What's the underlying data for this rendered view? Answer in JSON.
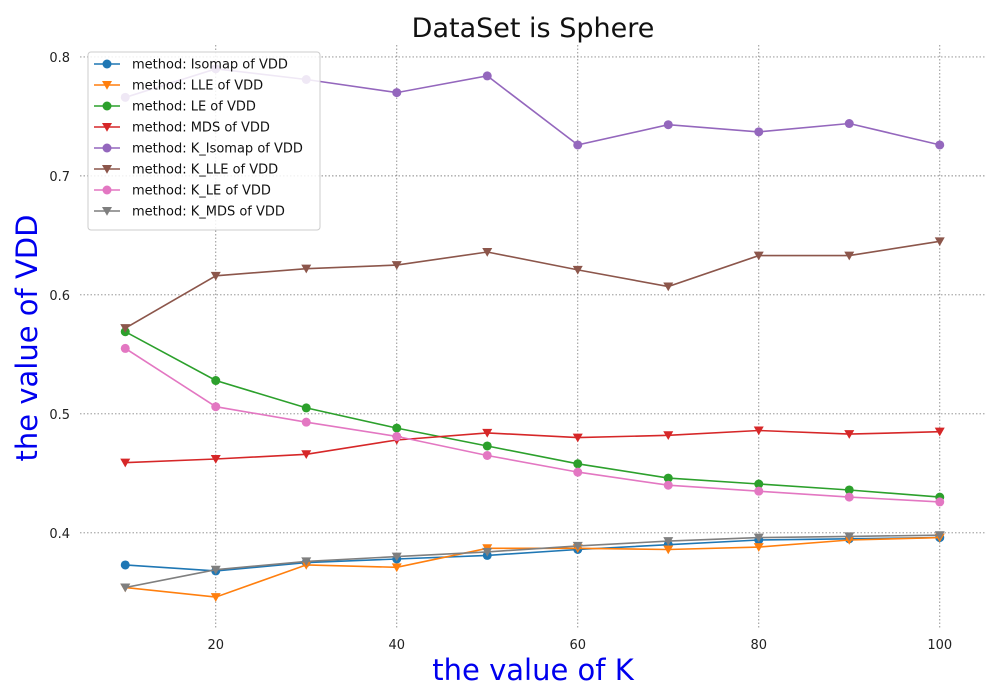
{
  "chart_data": {
    "type": "line",
    "title": "DataSet is Sphere",
    "xlabel": "the value of K",
    "ylabel": "the value of VDD",
    "label_color": "#0000ee",
    "x": [
      10,
      20,
      30,
      40,
      50,
      60,
      70,
      80,
      90,
      100
    ],
    "xlim": [
      5,
      105
    ],
    "ylim": [
      0.32,
      0.81
    ],
    "xticks": [
      20,
      40,
      60,
      80,
      100
    ],
    "yticks": [
      0.4,
      0.5,
      0.6,
      0.7,
      0.8
    ],
    "grid": true,
    "grid_style": "dotted",
    "legend_position": "upper-left",
    "series": [
      {
        "name": "method: Isomap of VDD",
        "color": "#1f77b4",
        "marker": "circle",
        "values": [
          0.373,
          0.368,
          0.375,
          0.378,
          0.381,
          0.386,
          0.39,
          0.394,
          0.395,
          0.396
        ]
      },
      {
        "name": "method: LLE of VDD",
        "color": "#ff7f0e",
        "marker": "triangle",
        "values": [
          0.354,
          0.346,
          0.373,
          0.371,
          0.387,
          0.387,
          0.386,
          0.388,
          0.394,
          0.396
        ]
      },
      {
        "name": "method: LE of VDD",
        "color": "#2ca02c",
        "marker": "circle",
        "values": [
          0.569,
          0.528,
          0.505,
          0.488,
          0.473,
          0.458,
          0.446,
          0.441,
          0.436,
          0.43
        ]
      },
      {
        "name": "method: MDS of VDD",
        "color": "#d62728",
        "marker": "triangle",
        "values": [
          0.459,
          0.462,
          0.466,
          0.478,
          0.484,
          0.48,
          0.482,
          0.486,
          0.483,
          0.485
        ]
      },
      {
        "name": "method: K_Isomap of VDD",
        "color": "#9467bd",
        "marker": "circle",
        "values": [
          0.766,
          0.79,
          0.781,
          0.77,
          0.784,
          0.726,
          0.743,
          0.737,
          0.744,
          0.726
        ]
      },
      {
        "name": "method: K_LLE of VDD",
        "color": "#8c564b",
        "marker": "triangle",
        "values": [
          0.572,
          0.616,
          0.622,
          0.625,
          0.636,
          0.621,
          0.607,
          0.633,
          0.633,
          0.645
        ]
      },
      {
        "name": "method: K_LE of VDD",
        "color": "#e377c2",
        "marker": "circle",
        "values": [
          0.555,
          0.506,
          0.493,
          0.481,
          0.465,
          0.451,
          0.44,
          0.435,
          0.43,
          0.426
        ]
      },
      {
        "name": "method: K_MDS of VDD",
        "color": "#7f7f7f",
        "marker": "triangle",
        "values": [
          0.354,
          0.369,
          0.376,
          0.38,
          0.384,
          0.389,
          0.393,
          0.396,
          0.397,
          0.398
        ]
      }
    ]
  }
}
